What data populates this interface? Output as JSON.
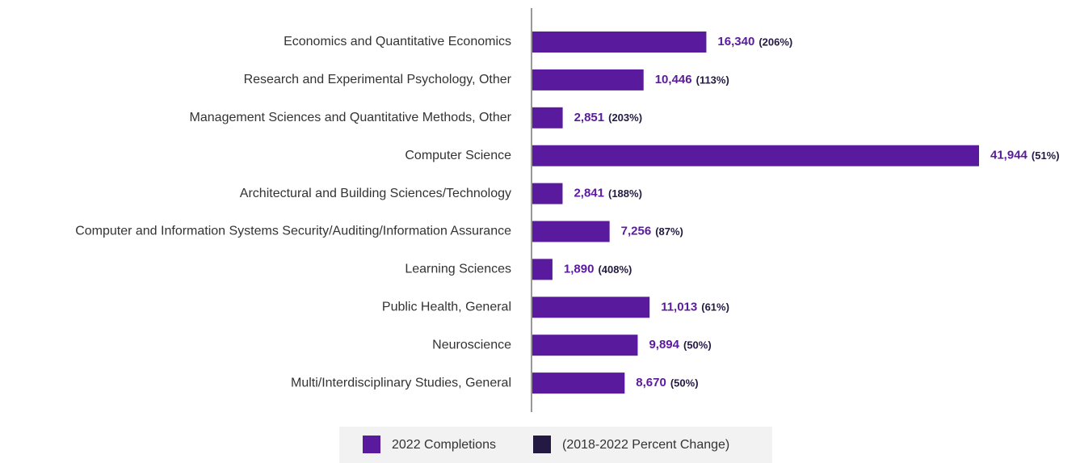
{
  "chart_data": {
    "type": "bar",
    "orientation": "horizontal",
    "categories": [
      "Economics and Quantitative Economics",
      "Research and Experimental Psychology, Other",
      "Management Sciences and Quantitative Methods, Other",
      "Computer Science",
      "Architectural and Building Sciences/Technology",
      "Computer and Information Systems Security/Auditing/Information Assurance",
      "Learning Sciences",
      "Public Health, General",
      "Neuroscience",
      "Multi/Interdisciplinary Studies, General"
    ],
    "series": [
      {
        "name": "2022 Completions",
        "color": "#5a1a9e",
        "values": [
          16340,
          10446,
          2851,
          41944,
          2841,
          7256,
          1890,
          11013,
          9894,
          8670
        ],
        "value_labels": [
          "16,340",
          "10,446",
          "2,851",
          "41,944",
          "2,841",
          "7,256",
          "1,890",
          "11,013",
          "9,894",
          "8,670"
        ]
      },
      {
        "name": "(2018-2022 Percent Change)",
        "color": "#231942",
        "values": [
          206,
          113,
          203,
          51,
          188,
          87,
          408,
          61,
          50,
          50
        ],
        "value_labels": [
          "(206%)",
          "(113%)",
          "(203%)",
          "(51%)",
          "(188%)",
          "(87%)",
          "(408%)",
          "(61%)",
          "(50%)",
          "(50%)"
        ]
      }
    ]
  }
}
